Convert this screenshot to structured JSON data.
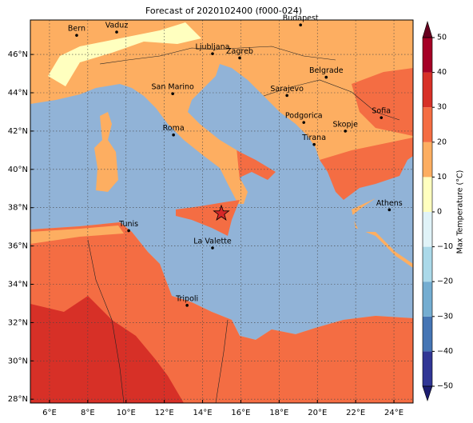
{
  "title": "Forecast of 2020102400 (f000-024)",
  "map": {
    "xlim": [
      5,
      25
    ],
    "ylim": [
      27.8,
      47.8
    ],
    "xticks": [
      {
        "value": 6,
        "label": "6°E"
      },
      {
        "value": 8,
        "label": "8°E"
      },
      {
        "value": 10,
        "label": "10°E"
      },
      {
        "value": 12,
        "label": "12°E"
      },
      {
        "value": 14,
        "label": "14°E"
      },
      {
        "value": 16,
        "label": "16°E"
      },
      {
        "value": 18,
        "label": "18°E"
      },
      {
        "value": 20,
        "label": "20°E"
      },
      {
        "value": 22,
        "label": "22°E"
      },
      {
        "value": 24,
        "label": "24°E"
      }
    ],
    "yticks": [
      {
        "value": 28,
        "label": "28°N"
      },
      {
        "value": 30,
        "label": "30°N"
      },
      {
        "value": 32,
        "label": "32°N"
      },
      {
        "value": 34,
        "label": "34°N"
      },
      {
        "value": 36,
        "label": "36°N"
      },
      {
        "value": 38,
        "label": "38°N"
      },
      {
        "value": 40,
        "label": "40°N"
      },
      {
        "value": 42,
        "label": "42°N"
      },
      {
        "value": 44,
        "label": "44°N"
      },
      {
        "value": 46,
        "label": "46°N"
      }
    ],
    "grid": true,
    "cities": [
      {
        "name": "Bern",
        "lon": 7.42,
        "lat": 47.0
      },
      {
        "name": "Vaduz",
        "lon": 9.51,
        "lat": 47.17
      },
      {
        "name": "Budapest",
        "lon": 19.12,
        "lat": 47.54
      },
      {
        "name": "Ljubljana",
        "lon": 14.52,
        "lat": 46.04
      },
      {
        "name": "Zagreb",
        "lon": 15.94,
        "lat": 45.82
      },
      {
        "name": "Belgrade",
        "lon": 20.46,
        "lat": 44.81
      },
      {
        "name": "San Marino",
        "lon": 12.44,
        "lat": 43.95
      },
      {
        "name": "Sarajevo",
        "lon": 18.41,
        "lat": 43.86
      },
      {
        "name": "Sofia",
        "lon": 23.34,
        "lat": 42.7
      },
      {
        "name": "Podgorica",
        "lon": 19.29,
        "lat": 42.45
      },
      {
        "name": "Skopje",
        "lon": 21.46,
        "lat": 42.0
      },
      {
        "name": "Roma",
        "lon": 12.48,
        "lat": 41.8
      },
      {
        "name": "Tirana",
        "lon": 19.83,
        "lat": 41.3
      },
      {
        "name": "Athens",
        "lon": 23.76,
        "lat": 37.89
      },
      {
        "name": "Tunis",
        "lon": 10.14,
        "lat": 36.8
      },
      {
        "name": "La Valette",
        "lon": 14.52,
        "lat": 35.9
      },
      {
        "name": "Tripoli",
        "lon": 13.19,
        "lat": 32.9
      }
    ],
    "marker": {
      "lon": 14.98,
      "lat": 37.7,
      "color": "#d62728"
    }
  },
  "colorbar": {
    "label": "Max Temperature (°C)",
    "ticks": [
      {
        "value": -50,
        "label": "−50"
      },
      {
        "value": -40,
        "label": "−40"
      },
      {
        "value": -30,
        "label": "−30"
      },
      {
        "value": -20,
        "label": "−20"
      },
      {
        "value": -10,
        "label": "−10"
      },
      0,
      10,
      20,
      30,
      40,
      50
    ],
    "colors": [
      "#313695",
      "#4575b4",
      "#74add1",
      "#abd9e9",
      "#e0f3f8",
      "#ffffbf",
      "#fdae61",
      "#f46d43",
      "#d73027",
      "#a50026"
    ],
    "under_color": "#1d1d70",
    "over_color": "#67001f"
  }
}
